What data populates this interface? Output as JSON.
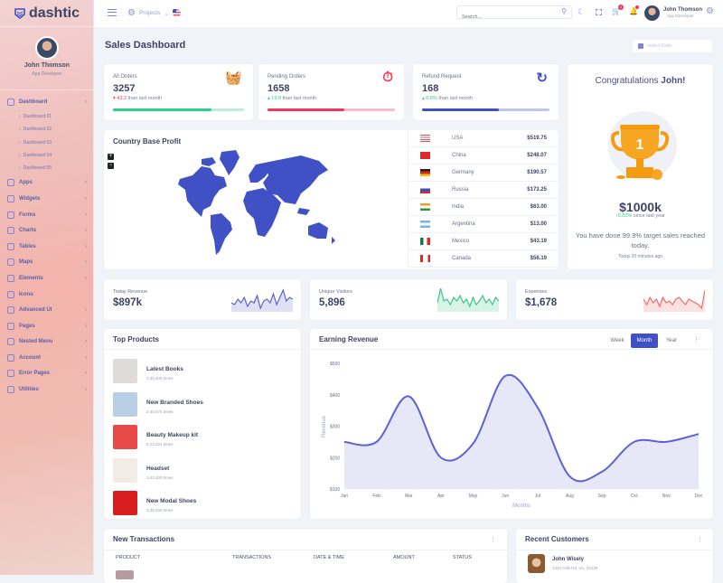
{
  "brand": {
    "name": "dashtic",
    "color": "#3f51c4"
  },
  "user": {
    "name": "John Thomson",
    "role": "App Developer"
  },
  "sidebar": {
    "items": [
      {
        "label": "Dashboard",
        "icon": "home-icon",
        "active": true,
        "sub": [
          "Dashboard 01",
          "Dashboard 02",
          "Dashboard 03",
          "Dashboard 04",
          "Dashboard 05"
        ]
      },
      {
        "label": "Apps",
        "icon": "layers-icon"
      },
      {
        "label": "Widgets",
        "icon": "box-icon"
      },
      {
        "label": "Forms",
        "icon": "edit-icon"
      },
      {
        "label": "Charts",
        "icon": "pie-chart-icon"
      },
      {
        "label": "Tables",
        "icon": "table-icon"
      },
      {
        "label": "Maps",
        "icon": "map-pin-icon"
      },
      {
        "label": "Elements",
        "icon": "grid-icon"
      },
      {
        "label": "Icons",
        "icon": "droplet-icon"
      },
      {
        "label": "Advanced UI",
        "icon": "window-icon"
      },
      {
        "label": "Pages",
        "icon": "file-icon"
      },
      {
        "label": "Nested Menu",
        "icon": "sliders-icon"
      },
      {
        "label": "Account",
        "icon": "users-icon"
      },
      {
        "label": "Error Pages",
        "icon": "info-icon"
      },
      {
        "label": "Utilities",
        "icon": "settings-icon"
      }
    ]
  },
  "header": {
    "projects": "Projects",
    "search_placeholder": "Search...",
    "cart_badge": "4"
  },
  "page": {
    "title": "Sales Dashboard",
    "date_placeholder": "select Date"
  },
  "stats": [
    {
      "label": "All Orders",
      "value": "3257",
      "change": "43.2",
      "dir": "down",
      "change_color": "#f5365c",
      "suffix": "than last month",
      "progress": 0.75,
      "color": "#2dce89",
      "icon": "basket-icon"
    },
    {
      "label": "Pending Orders",
      "value": "1658",
      "change": "19.8",
      "dir": "up",
      "change_color": "#2dce89",
      "suffix": "than last month",
      "progress": 0.6,
      "color": "#f5365c",
      "icon": "stopwatch-icon"
    },
    {
      "label": "Refund Request",
      "value": "168",
      "change": "0.8%",
      "dir": "up",
      "change_color": "#2dce89",
      "suffix": "than last month",
      "progress": 0.6,
      "color": "#3f51c4",
      "icon": "refresh-icon"
    }
  ],
  "country_profit": {
    "title": "Country Base Profit",
    "rows": [
      {
        "country": "USA",
        "value": "$519.75"
      },
      {
        "country": "China",
        "value": "$248.07"
      },
      {
        "country": "Germany",
        "value": "$190.57"
      },
      {
        "country": "Russia",
        "value": "$173.25"
      },
      {
        "country": "India",
        "value": "$63.00"
      },
      {
        "country": "Argentina",
        "value": "$13.00"
      },
      {
        "country": "Mexico",
        "value": "$43.19"
      },
      {
        "country": "Canada",
        "value": "$56.19"
      }
    ]
  },
  "congrats": {
    "title_prefix": "Congratulations ",
    "name": "John!",
    "amount": "$1000k",
    "change": "0.82%",
    "change_suffix": "since last year",
    "message": "You have done 99.9% target sales reached today.",
    "time": "Today 20 minutes ago"
  },
  "mini": [
    {
      "label": "Today Revenue",
      "value": "$897k",
      "color": "#5c62c9"
    },
    {
      "label": "Unique Visitors",
      "value": "5,896",
      "color": "#3ec38b"
    },
    {
      "label": "Expenses",
      "value": "$1,678",
      "color": "#ef6b6b"
    }
  ],
  "top_products": {
    "title": "Top Products",
    "items": [
      {
        "name": "Latest Books",
        "sales": "2,30,400 times"
      },
      {
        "name": "New Branded Shoes",
        "sales": "3,45,675 times"
      },
      {
        "name": "Beauty Makeup kit",
        "sales": "5,23,324 times"
      },
      {
        "name": "Headset",
        "sales": "1,42,400 times"
      },
      {
        "name": "New Modal Shoes",
        "sales": "3,30,400 times"
      }
    ]
  },
  "earning": {
    "title": "Earning Revenue",
    "tabs": [
      "Week",
      "Month",
      "Year"
    ],
    "active_tab": "Month"
  },
  "chart_data": {
    "type": "area",
    "title": "",
    "xlabel": "Months",
    "ylabel": "Revenue",
    "categories": [
      "Jan",
      "Feb",
      "Mar",
      "Apr",
      "May",
      "Jun",
      "Jul",
      "Aug",
      "Sep",
      "Oct",
      "Nov",
      "Dec"
    ],
    "values": [
      250,
      250,
      395,
      200,
      245,
      460,
      360,
      140,
      155,
      250,
      250,
      275
    ],
    "ylim": [
      100,
      500
    ],
    "yticks": [
      "$100",
      "$200",
      "$300",
      "$400",
      "$500"
    ],
    "color": "#5c62d6",
    "grid": false
  },
  "transactions": {
    "title": "New Transactions",
    "columns": [
      "PRODUCT",
      "TRANSACTIONS",
      "DATE & TIME",
      "AMOUNT",
      "STATUS"
    ]
  },
  "customers": {
    "title": "Recent Customers",
    "items": [
      {
        "name": "John Wisely",
        "address": "1340 Gills Rd, VA, 23139"
      }
    ]
  }
}
